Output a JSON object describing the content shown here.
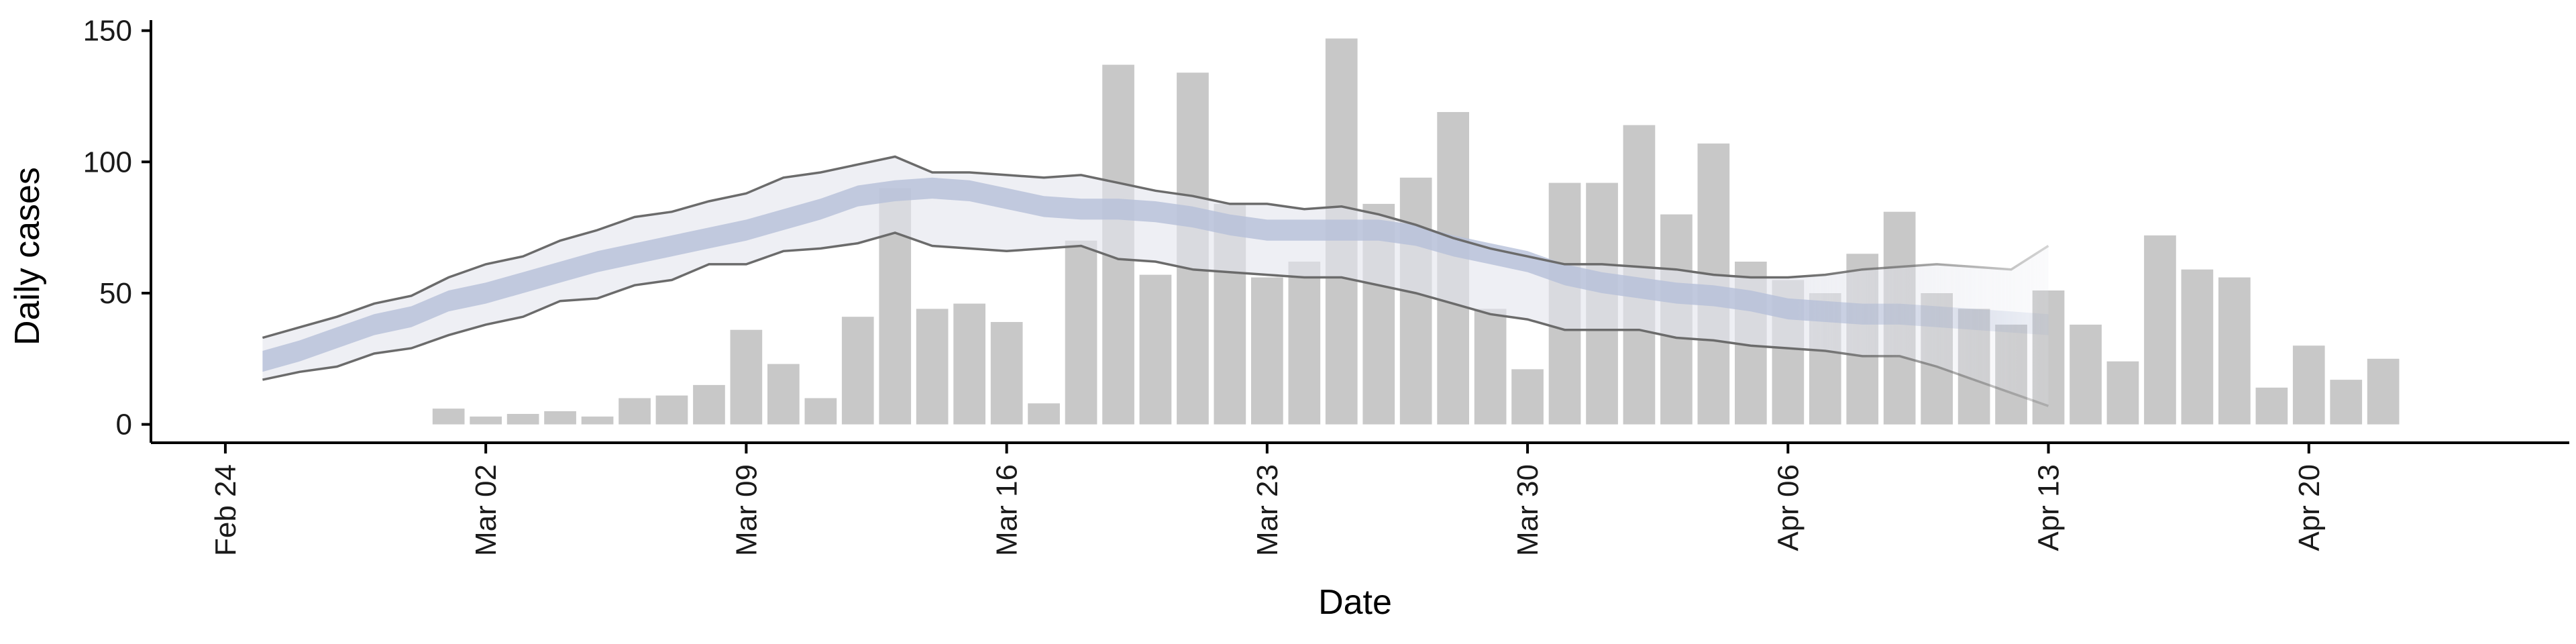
{
  "chart_data": {
    "type": "bar",
    "xlabel": "Date",
    "ylabel": "Daily cases",
    "xlim": [
      "2020-02-22",
      "2020-04-27"
    ],
    "ylim": [
      -7,
      154
    ],
    "x_ticks": [
      {
        "date": "2020-02-24",
        "label": "Feb 24"
      },
      {
        "date": "2020-03-02",
        "label": "Mar 02"
      },
      {
        "date": "2020-03-09",
        "label": "Mar 09"
      },
      {
        "date": "2020-03-16",
        "label": "Mar 16"
      },
      {
        "date": "2020-03-23",
        "label": "Mar 23"
      },
      {
        "date": "2020-03-30",
        "label": "Mar 30"
      },
      {
        "date": "2020-04-06",
        "label": "Apr 06"
      },
      {
        "date": "2020-04-13",
        "label": "Apr 13"
      },
      {
        "date": "2020-04-20",
        "label": "Apr 20"
      }
    ],
    "y_ticks": [
      0,
      50,
      100,
      150
    ],
    "grid": false,
    "legend": "none",
    "colors": {
      "bars": "#c8c8c8",
      "median_band": "#b6c0da",
      "interval_band": "#e3e5ee",
      "interval_edge": "#6b6b6b",
      "axis": "#000000"
    },
    "bars": {
      "start_date": "2020-03-01",
      "values": [
        6,
        3,
        4,
        5,
        3,
        10,
        11,
        15,
        36,
        23,
        10,
        41,
        90,
        44,
        46,
        39,
        8,
        70,
        137,
        57,
        134,
        84,
        56,
        62,
        147,
        84,
        94,
        119,
        44,
        21,
        92,
        92,
        114,
        80,
        107,
        62,
        55,
        50,
        65,
        81,
        50,
        44,
        38,
        51,
        38,
        24,
        72,
        59,
        56,
        14,
        30,
        17,
        25
      ]
    },
    "estimate": {
      "start_date": "2020-02-25",
      "median_low": [
        20,
        24,
        29,
        34,
        37,
        43,
        46,
        50,
        54,
        58,
        61,
        64,
        67,
        70,
        74,
        78,
        83,
        85,
        86,
        85,
        82,
        79,
        78,
        78,
        77,
        75,
        72,
        70,
        70,
        70,
        70,
        68,
        64,
        61,
        58,
        53,
        50,
        48,
        46,
        45,
        43,
        40,
        39,
        38,
        38,
        37,
        36,
        35,
        34
      ],
      "median_high": [
        28,
        32,
        37,
        42,
        45,
        51,
        54,
        58,
        62,
        66,
        69,
        72,
        75,
        78,
        82,
        86,
        91,
        93,
        94,
        93,
        90,
        87,
        86,
        86,
        85,
        83,
        80,
        78,
        78,
        78,
        78,
        76,
        72,
        69,
        66,
        61,
        58,
        56,
        54,
        53,
        51,
        48,
        47,
        46,
        46,
        45,
        44,
        43,
        42
      ],
      "lower": [
        17,
        20,
        22,
        27,
        29,
        34,
        38,
        41,
        47,
        48,
        53,
        55,
        61,
        61,
        66,
        67,
        69,
        73,
        68,
        67,
        66,
        67,
        68,
        63,
        62,
        59,
        58,
        57,
        56,
        56,
        53,
        50,
        46,
        42,
        40,
        36,
        36,
        36,
        33,
        32,
        30,
        29,
        28,
        26,
        26,
        22,
        17,
        12,
        7
      ],
      "upper": [
        33,
        37,
        41,
        46,
        49,
        56,
        61,
        64,
        70,
        74,
        79,
        81,
        85,
        88,
        94,
        96,
        99,
        102,
        96,
        96,
        95,
        94,
        95,
        92,
        89,
        87,
        84,
        84,
        82,
        83,
        80,
        76,
        71,
        67,
        64,
        61,
        61,
        60,
        59,
        57,
        56,
        56,
        57,
        59,
        60,
        61,
        60,
        59,
        68
      ]
    }
  }
}
